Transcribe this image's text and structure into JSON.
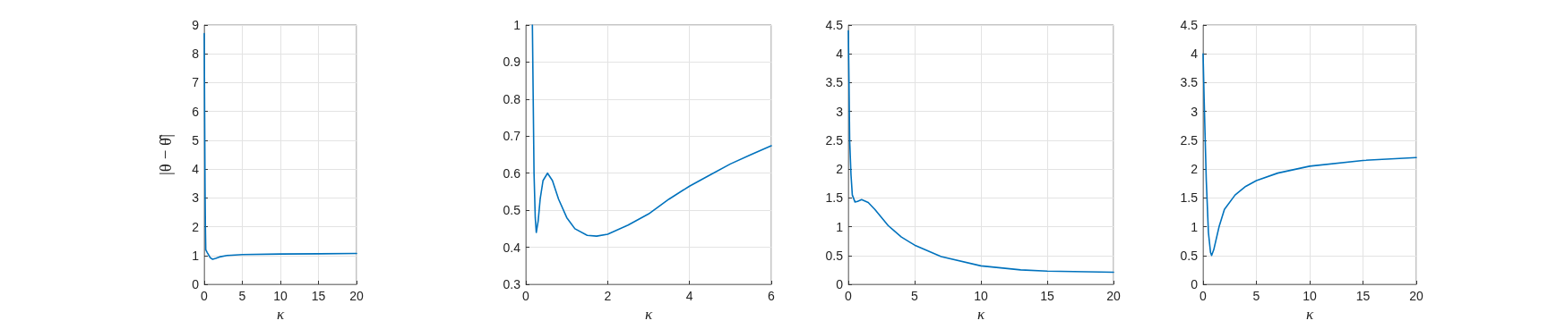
{
  "chart_data": [
    {
      "type": "line",
      "xlabel": "κ",
      "ylabel": "|θ − θ̂|",
      "xlim": [
        0,
        20
      ],
      "xticks": [
        0,
        5,
        10,
        15,
        20
      ],
      "ylim": [
        0,
        9
      ],
      "yticks": [
        0,
        1,
        2,
        3,
        4,
        5,
        6,
        7,
        8,
        9
      ],
      "grid": true,
      "series": [
        {
          "color": "#0072bd",
          "x": [
            0,
            0.05,
            0.1,
            0.15,
            0.2,
            0.4,
            0.8,
            1.1,
            1.5,
            2,
            3,
            5,
            10,
            15,
            20
          ],
          "values": [
            8.7,
            6,
            3.5,
            2,
            1.2,
            1.1,
            0.92,
            0.87,
            0.9,
            0.95,
            1.0,
            1.03,
            1.05,
            1.06,
            1.07
          ]
        }
      ]
    },
    {
      "type": "line",
      "xlabel": "κ",
      "xlim": [
        0,
        6
      ],
      "xticks": [
        0,
        2,
        4,
        6
      ],
      "ylim": [
        0.3,
        1
      ],
      "yticks": [
        0.3,
        0.4,
        0.5,
        0.6,
        0.7,
        0.8,
        0.9,
        1
      ],
      "grid": true,
      "series": [
        {
          "color": "#0072bd",
          "x": [
            0.16,
            0.18,
            0.2,
            0.23,
            0.255,
            0.3,
            0.35,
            0.42,
            0.53,
            0.65,
            0.8,
            1,
            1.2,
            1.5,
            1.73,
            2,
            2.5,
            3,
            3.5,
            4,
            4.5,
            5,
            5.5,
            6
          ],
          "values": [
            1.0,
            0.8,
            0.6,
            0.48,
            0.44,
            0.47,
            0.53,
            0.58,
            0.6,
            0.58,
            0.53,
            0.48,
            0.45,
            0.432,
            0.43,
            0.435,
            0.46,
            0.49,
            0.53,
            0.565,
            0.595,
            0.625,
            0.65,
            0.674
          ]
        }
      ]
    },
    {
      "type": "line",
      "xlabel": "κ",
      "xlim": [
        0,
        20
      ],
      "xticks": [
        0,
        5,
        10,
        15,
        20
      ],
      "ylim": [
        0,
        4.5
      ],
      "yticks": [
        0,
        0.5,
        1,
        1.5,
        2,
        2.5,
        3,
        3.5,
        4,
        4.5
      ],
      "grid": true,
      "series": [
        {
          "color": "#0072bd",
          "x": [
            0,
            0.05,
            0.1,
            0.2,
            0.3,
            0.5,
            0.7,
            1,
            1.5,
            2,
            3,
            4,
            5,
            7,
            10,
            13,
            15,
            20
          ],
          "values": [
            4.4,
            3.5,
            2.5,
            1.9,
            1.55,
            1.43,
            1.44,
            1.47,
            1.42,
            1.3,
            1.02,
            0.82,
            0.68,
            0.48,
            0.32,
            0.25,
            0.23,
            0.21
          ]
        }
      ]
    },
    {
      "type": "line",
      "xlabel": "κ",
      "xlim": [
        0,
        20
      ],
      "xticks": [
        0,
        5,
        10,
        15,
        20
      ],
      "ylim": [
        0,
        4.5
      ],
      "yticks": [
        0,
        0.5,
        1,
        1.5,
        2,
        2.5,
        3,
        3.5,
        4,
        4.5
      ],
      "grid": true,
      "series": [
        {
          "color": "#0072bd",
          "x": [
            0,
            0.1,
            0.3,
            0.5,
            0.7,
            0.8,
            1,
            1.5,
            2,
            3,
            4,
            5,
            7,
            10,
            15,
            20
          ],
          "values": [
            4.0,
            3.2,
            1.8,
            0.9,
            0.55,
            0.5,
            0.6,
            1.0,
            1.3,
            1.55,
            1.7,
            1.8,
            1.93,
            2.05,
            2.15,
            2.2
          ]
        }
      ]
    }
  ]
}
